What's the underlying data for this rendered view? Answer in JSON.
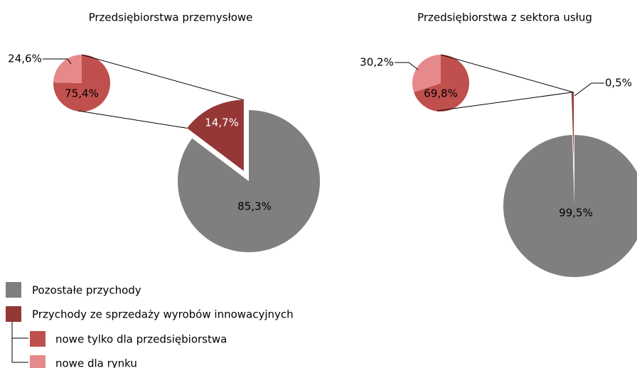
{
  "chart_data": [
    {
      "type": "pie-of-pie",
      "title": "Przedsiębiorstwa przemysłowe",
      "categories": [
        "Pozostałe przychody",
        "Przychody ze sprzedaży wyrobów innowacyjnych"
      ],
      "values": [
        85.3,
        14.7
      ],
      "value_labels": [
        "85,3%",
        "14,7%"
      ],
      "colors": [
        "#7f7f7f",
        "#953735"
      ],
      "sub": {
        "categories": [
          "nowe tylko dla przedsiębiorstwa",
          "nowe dla rynku"
        ],
        "values": [
          75.4,
          24.6
        ],
        "value_labels": [
          "75,4%",
          "24,6%"
        ],
        "colors": [
          "#c0504d",
          "#e6898b"
        ]
      }
    },
    {
      "type": "pie-of-pie",
      "title": "Przedsiębiorstwa z sektora usług",
      "values": [
        99.5,
        0.5
      ],
      "value_labels": [
        "99,5%",
        "0,5%"
      ],
      "colors": [
        "#7f7f7f",
        "#953735"
      ],
      "sub": {
        "values": [
          69.8,
          30.2
        ],
        "value_labels": [
          "69,8%",
          "30,2%"
        ],
        "colors": [
          "#c0504d",
          "#e6898b"
        ]
      }
    }
  ]
}
